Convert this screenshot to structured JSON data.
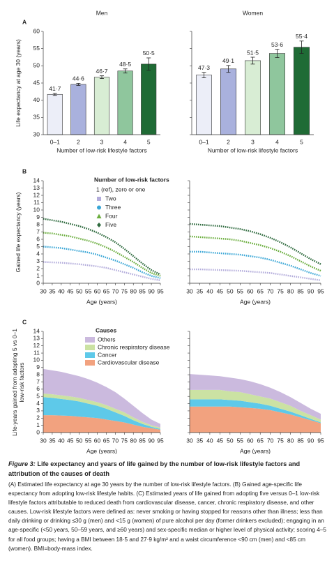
{
  "chart_data": [
    {
      "type": "bar",
      "panel": "A",
      "title": "Men",
      "ylabel": "Life expectancy at age 30 (years)",
      "xlabel": "Number of low-risk lifestyle factors",
      "categories": [
        "0–1",
        "2",
        "3",
        "4",
        "5"
      ],
      "values": [
        41.7,
        44.6,
        46.7,
        48.5,
        50.5
      ],
      "value_labels": [
        "41·7",
        "44·6",
        "46·7",
        "48·5",
        "50·5"
      ],
      "errors": [
        0.3,
        0.3,
        0.4,
        0.6,
        1.8
      ],
      "colors": [
        "#eceef8",
        "#a9b1dd",
        "#d8edd4",
        "#8fc69d",
        "#1f6b35"
      ],
      "ylim": [
        30,
        60
      ],
      "yticks": [
        30,
        35,
        40,
        45,
        50,
        55,
        60
      ]
    },
    {
      "type": "bar",
      "title": "Women",
      "xlabel": "Number of low-risk lifestyle factors",
      "categories": [
        "0–1",
        "2",
        "3",
        "4",
        "5"
      ],
      "values": [
        47.3,
        49.1,
        51.5,
        53.6,
        55.4
      ],
      "value_labels": [
        "47·3",
        "49·1",
        "51·5",
        "53·6",
        "55·4"
      ],
      "errors": [
        0.8,
        1.0,
        1.0,
        1.2,
        1.8
      ],
      "colors": [
        "#eceef8",
        "#a9b1dd",
        "#d8edd4",
        "#8fc69d",
        "#1f6b35"
      ],
      "ylim": [
        30,
        60
      ],
      "yticks": [
        30,
        35,
        40,
        45,
        50,
        55,
        60
      ]
    },
    {
      "type": "line",
      "panel": "B",
      "ylabel": "Gained life expectancy (years)",
      "xlabel": "Age (years)",
      "legend_title": "Number of low-risk factors",
      "reference_label": "1 (ref), zero or one",
      "x": [
        30,
        35,
        40,
        45,
        50,
        55,
        60,
        65,
        70,
        75,
        80,
        85,
        90,
        95
      ],
      "xlim": [
        30,
        95
      ],
      "xticks": [
        30,
        35,
        40,
        45,
        50,
        55,
        60,
        65,
        70,
        75,
        80,
        85,
        90,
        95
      ],
      "ylim": [
        0,
        14
      ],
      "yticks": [
        0,
        1,
        2,
        3,
        4,
        5,
        6,
        7,
        8,
        9,
        10,
        11,
        12,
        13,
        14
      ],
      "series": [
        {
          "name": "Two",
          "color": "#b3acdb",
          "marker": "square",
          "values": [
            2.9,
            2.85,
            2.8,
            2.7,
            2.6,
            2.45,
            2.3,
            2.1,
            1.8,
            1.5,
            1.2,
            0.9,
            0.6,
            0.4
          ]
        },
        {
          "name": "Three",
          "color": "#39a6d6",
          "marker": "circle",
          "values": [
            5.0,
            4.9,
            4.8,
            4.6,
            4.4,
            4.2,
            3.9,
            3.5,
            3.1,
            2.6,
            2.1,
            1.5,
            1.0,
            0.7
          ]
        },
        {
          "name": "Four",
          "color": "#6aad3c",
          "marker": "triangle",
          "values": [
            6.9,
            6.8,
            6.6,
            6.4,
            6.1,
            5.8,
            5.4,
            4.9,
            4.3,
            3.6,
            2.9,
            2.1,
            1.4,
            1.0
          ]
        },
        {
          "name": "Five",
          "color": "#2e6a3e",
          "marker": "diamond",
          "values": [
            8.8,
            8.6,
            8.4,
            8.1,
            7.8,
            7.4,
            6.9,
            6.3,
            5.6,
            4.7,
            3.7,
            2.7,
            1.8,
            1.2
          ]
        }
      ]
    },
    {
      "type": "line",
      "xlabel": "Age (years)",
      "x": [
        30,
        35,
        40,
        45,
        50,
        55,
        60,
        65,
        70,
        75,
        80,
        85,
        90,
        95
      ],
      "xlim": [
        30,
        95
      ],
      "xticks": [
        30,
        35,
        40,
        45,
        50,
        55,
        60,
        65,
        70,
        75,
        80,
        85,
        90,
        95
      ],
      "ylim": [
        0,
        14
      ],
      "yticks": [
        0,
        1,
        2,
        3,
        4,
        5,
        6,
        7,
        8,
        9,
        10,
        11,
        12,
        13,
        14
      ],
      "series": [
        {
          "color": "#b3acdb",
          "values": [
            1.9,
            1.9,
            1.85,
            1.8,
            1.75,
            1.7,
            1.6,
            1.5,
            1.4,
            1.2,
            1.0,
            0.8,
            0.6,
            0.4
          ]
        },
        {
          "color": "#39a6d6",
          "values": [
            4.3,
            4.3,
            4.2,
            4.1,
            4.0,
            3.9,
            3.7,
            3.5,
            3.2,
            2.8,
            2.4,
            1.9,
            1.4,
            1.0
          ]
        },
        {
          "color": "#6aad3c",
          "values": [
            6.4,
            6.3,
            6.2,
            6.1,
            6.0,
            5.8,
            5.5,
            5.2,
            4.8,
            4.3,
            3.7,
            3.0,
            2.3,
            1.7
          ]
        },
        {
          "color": "#2e6a3e",
          "values": [
            8.1,
            8.0,
            7.9,
            7.8,
            7.6,
            7.4,
            7.1,
            6.7,
            6.2,
            5.6,
            4.9,
            4.1,
            3.3,
            2.6
          ]
        }
      ]
    },
    {
      "type": "area",
      "panel": "C",
      "ylabel": "Life-years gained from adopting 5 vs 0–1 low-risk factors",
      "xlabel": "Age (years)",
      "legend_title": "Causes",
      "x": [
        30,
        35,
        40,
        45,
        50,
        55,
        60,
        65,
        70,
        75,
        80,
        85,
        90,
        95
      ],
      "xlim": [
        30,
        95
      ],
      "xticks": [
        30,
        35,
        40,
        45,
        50,
        55,
        60,
        65,
        70,
        75,
        80,
        85,
        90,
        95
      ],
      "ylim": [
        0,
        14
      ],
      "yticks": [
        0,
        1,
        2,
        3,
        4,
        5,
        6,
        7,
        8,
        9,
        10,
        11,
        12,
        13,
        14
      ],
      "series": [
        {
          "name": "Cardiovascular disease",
          "color": "#f2a27f",
          "values": [
            2.4,
            2.4,
            2.35,
            2.3,
            2.2,
            2.1,
            2.0,
            1.8,
            1.6,
            1.4,
            1.1,
            0.8,
            0.6,
            0.4
          ]
        },
        {
          "name": "Cancer",
          "color": "#5ec9e9",
          "values": [
            2.5,
            2.4,
            2.3,
            2.2,
            2.1,
            1.9,
            1.7,
            1.5,
            1.2,
            0.9,
            0.6,
            0.4,
            0.2,
            0.1
          ]
        },
        {
          "name": "Chronic respiratory disease",
          "color": "#cbe2a3",
          "values": [
            0.5,
            0.5,
            0.5,
            0.5,
            0.5,
            0.5,
            0.5,
            0.5,
            0.5,
            0.5,
            0.4,
            0.3,
            0.2,
            0.2
          ]
        },
        {
          "name": "Others",
          "color": "#cbbade",
          "values": [
            3.4,
            3.3,
            3.25,
            3.1,
            3.0,
            2.9,
            2.7,
            2.5,
            2.3,
            1.9,
            1.6,
            1.2,
            0.8,
            0.5
          ]
        }
      ]
    },
    {
      "type": "area",
      "xlabel": "Age (years)",
      "x": [
        30,
        35,
        40,
        45,
        50,
        55,
        60,
        65,
        70,
        75,
        80,
        85,
        90,
        95
      ],
      "xlim": [
        30,
        95
      ],
      "xticks": [
        30,
        35,
        40,
        45,
        50,
        55,
        60,
        65,
        70,
        75,
        80,
        85,
        90,
        95
      ],
      "ylim": [
        0,
        14
      ],
      "yticks": [
        0,
        1,
        2,
        3,
        4,
        5,
        6,
        7,
        8,
        9,
        10,
        11,
        12,
        13,
        14
      ],
      "series": [
        {
          "color": "#f2a27f",
          "values": [
            3.6,
            3.6,
            3.6,
            3.6,
            3.6,
            3.5,
            3.4,
            3.3,
            3.1,
            2.8,
            2.5,
            2.1,
            1.7,
            1.3
          ]
        },
        {
          "color": "#5ec9e9",
          "values": [
            1.0,
            1.0,
            1.0,
            1.0,
            0.9,
            0.9,
            0.8,
            0.7,
            0.6,
            0.5,
            0.4,
            0.3,
            0.2,
            0.1
          ]
        },
        {
          "color": "#cbe2a3",
          "values": [
            1.3,
            1.3,
            1.3,
            1.3,
            1.2,
            1.2,
            1.1,
            1.0,
            1.0,
            0.9,
            0.8,
            0.6,
            0.5,
            0.4
          ]
        },
        {
          "color": "#cbbade",
          "values": [
            2.2,
            2.1,
            2.0,
            1.9,
            1.9,
            1.8,
            1.8,
            1.7,
            1.5,
            1.4,
            1.2,
            1.1,
            0.9,
            0.8
          ]
        }
      ]
    }
  ],
  "caption": {
    "label": "Figure 3:",
    "title": "Life expectancy and years of life gained by the number of low-risk lifestyle factors and attribution of the causes of death",
    "text": "(A) Estimated life expectancy at age 30 years by the number of low-risk lifestyle factors. (B) Gained age-specific life expectancy from adopting low-risk lifestyle habits. (C) Estimated years of life gained from adopting five versus 0–1 low-risk lifestyle factors attributable to reduced death from cardiovascular disease, cancer, chronic respiratory disease, and other causes. Low-risk lifestyle factors were defined as: never smoking or having stopped for reasons other than illness; less than daily drinking or drinking ≤30 g (men) and <15 g (women) of pure alcohol per day (former drinkers excluded); engaging in an age-specific (<50 years, 50–59 years, and ≥60 years) and sex-specific median or higher level of physical activity; scoring 4–5 for all food groups; having a BMI between 18·5 and 27·9 kg/m² and a waist circumference <90 cm (men) and <85 cm (women). BMI=body-mass index."
  }
}
